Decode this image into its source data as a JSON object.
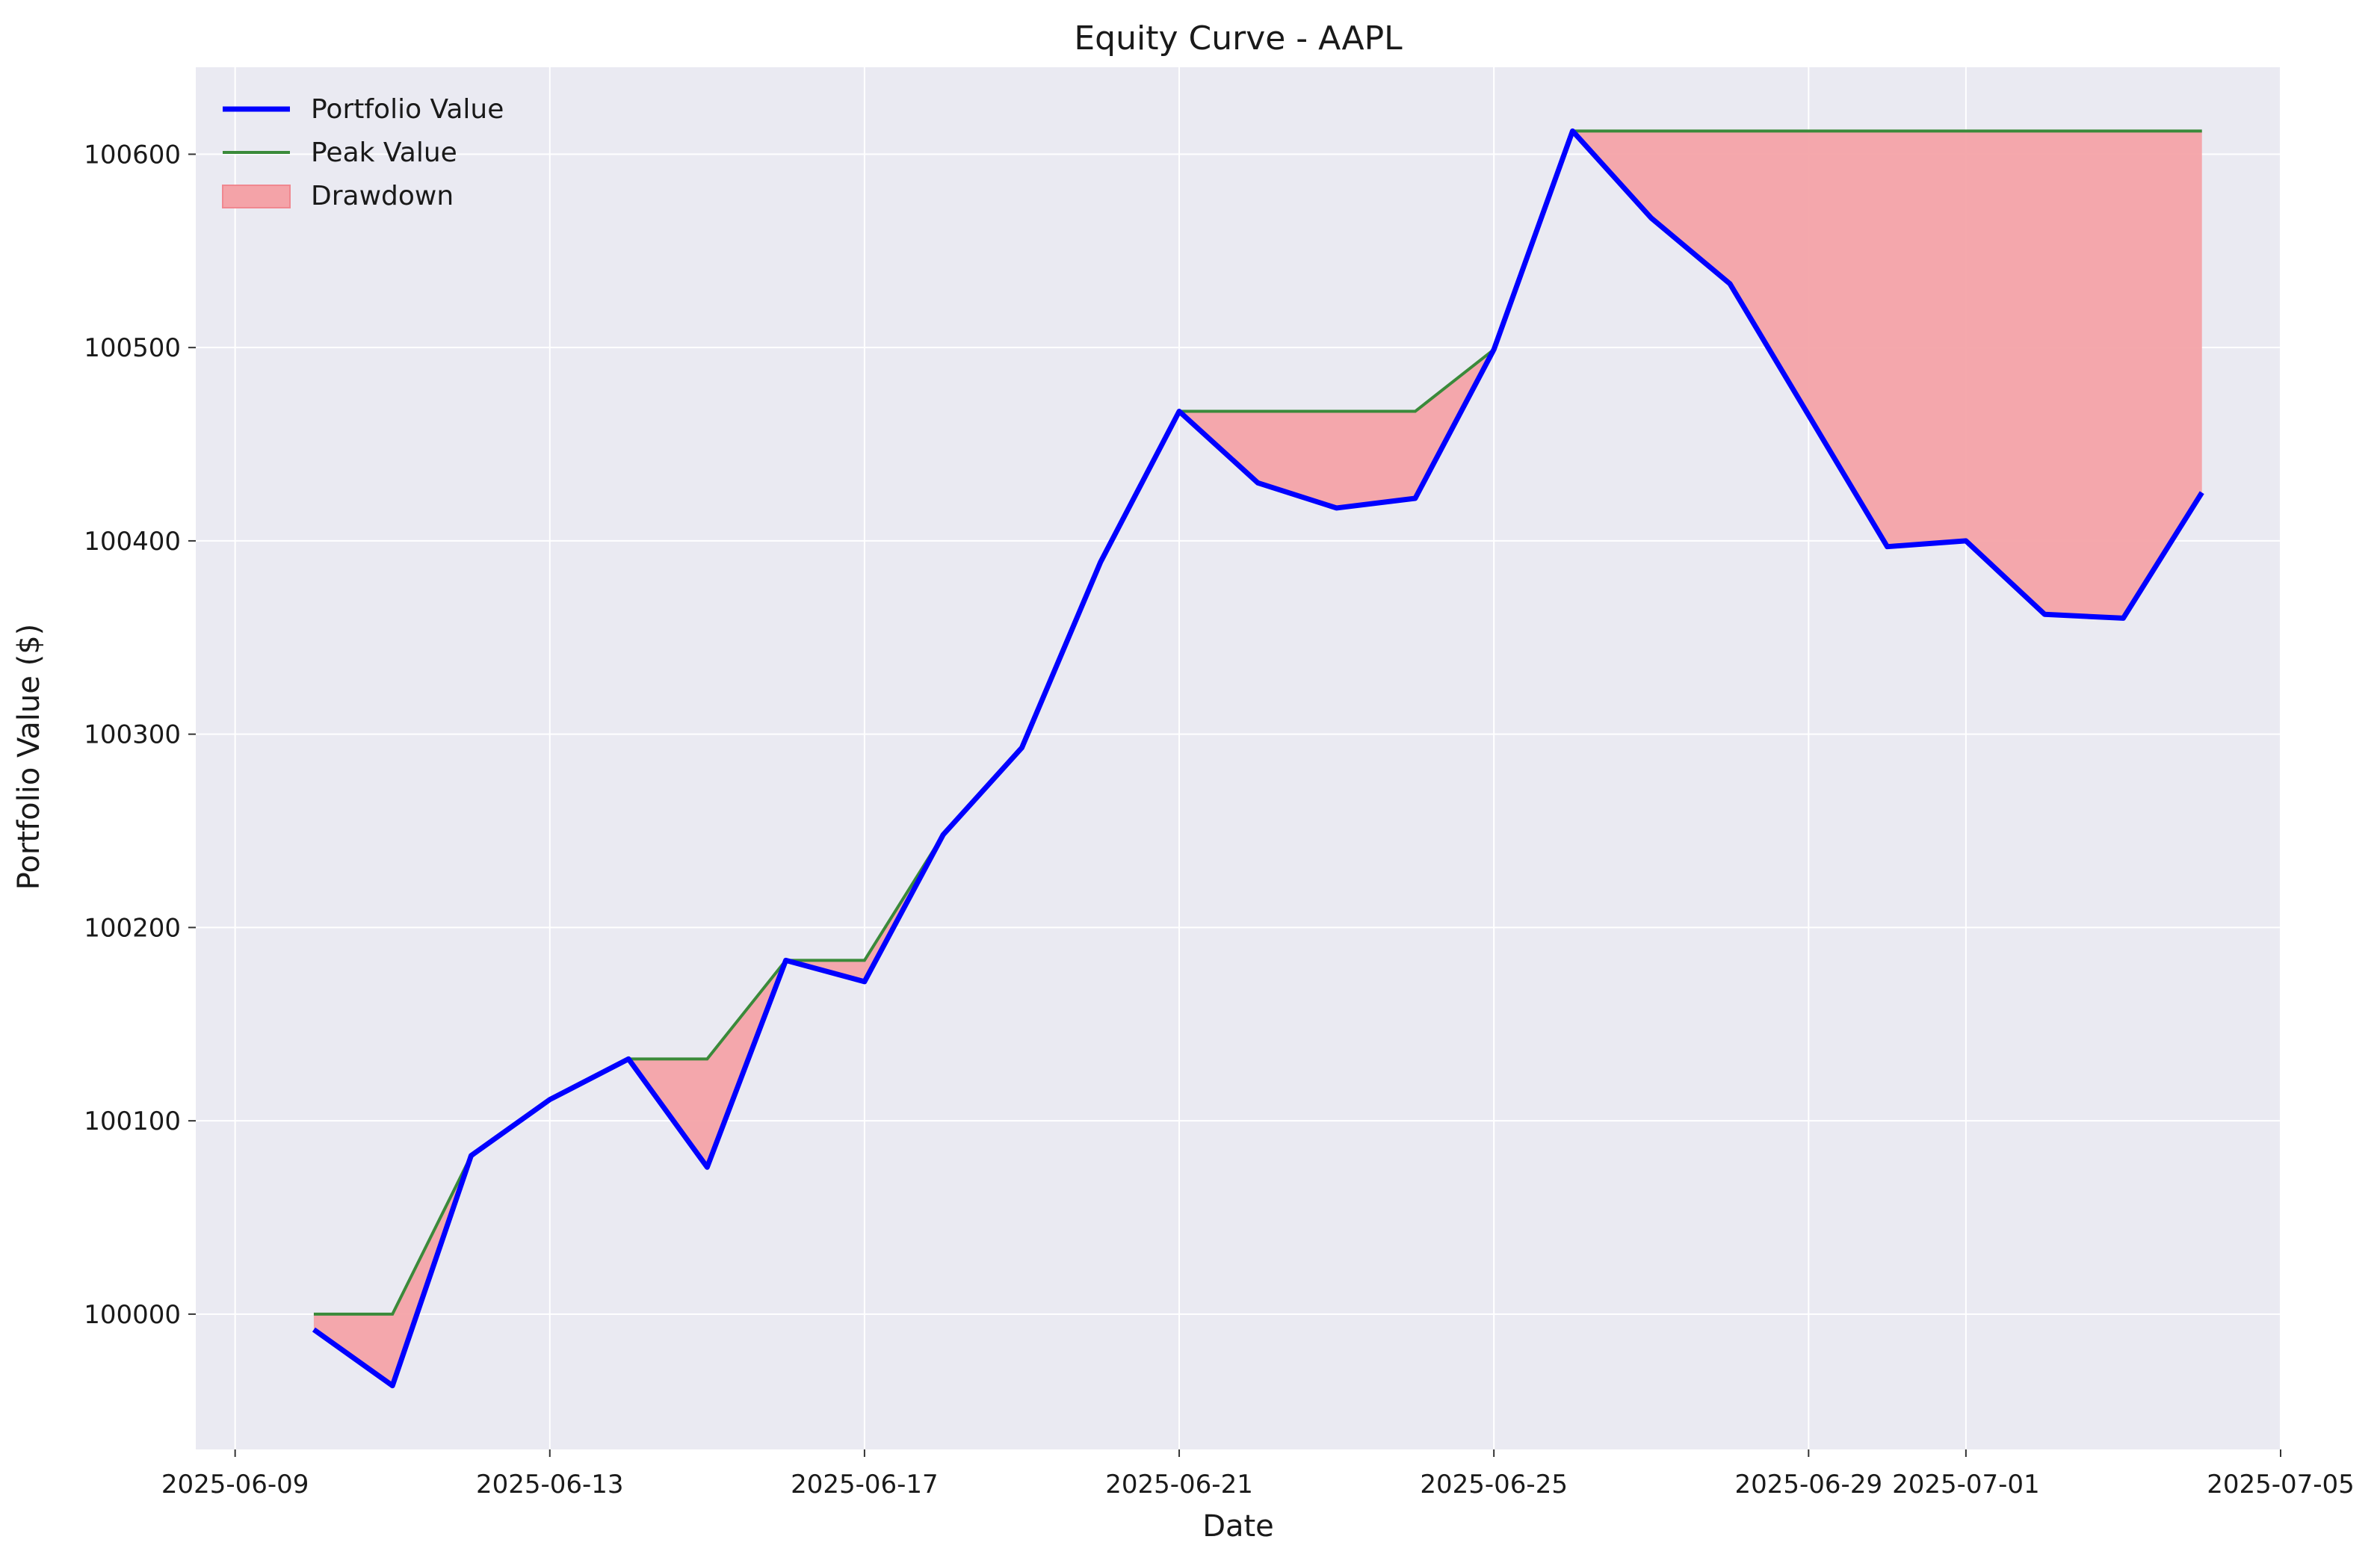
{
  "chart_data": {
    "type": "area",
    "title": "Equity Curve - AAPL",
    "xlabel": "Date",
    "ylabel": "Portfolio Value ($)",
    "x_tick_labels": [
      "2025-06-09",
      "2025-06-13",
      "2025-06-17",
      "2025-06-21",
      "2025-06-25",
      "2025-06-29",
      "2025-07-01",
      "2025-07-05"
    ],
    "x_tick_dates": [
      "2025-06-09",
      "2025-06-13",
      "2025-06-17",
      "2025-06-21",
      "2025-06-25",
      "2025-06-29",
      "2025-07-01",
      "2025-07-05"
    ],
    "y_tick_labels": [
      "100000",
      "100100",
      "100200",
      "100300",
      "100400",
      "100500",
      "100600"
    ],
    "y_ticks": [
      100000,
      100100,
      100200,
      100300,
      100400,
      100500,
      100600
    ],
    "xlim": [
      "2025-06-08T12:00",
      "2025-07-05"
    ],
    "ylim": [
      99930,
      100645
    ],
    "grid": true,
    "legend_position": "top-left",
    "legend": [
      "Portfolio Value",
      "Peak Value",
      "Drawdown"
    ],
    "x": [
      "2025-06-10",
      "2025-06-11",
      "2025-06-12",
      "2025-06-13",
      "2025-06-14",
      "2025-06-15",
      "2025-06-16",
      "2025-06-17",
      "2025-06-18",
      "2025-06-19",
      "2025-06-20",
      "2025-06-21",
      "2025-06-22",
      "2025-06-23",
      "2025-06-24",
      "2025-06-25",
      "2025-06-26",
      "2025-06-27",
      "2025-06-28",
      "2025-06-29",
      "2025-06-30",
      "2025-07-01",
      "2025-07-02",
      "2025-07-03",
      "2025-07-04"
    ],
    "series": [
      {
        "name": "Portfolio Value",
        "color": "#0000ff",
        "values": [
          99992,
          99963,
          100082,
          100111,
          100132,
          100076,
          100183,
          100172,
          100248,
          100293,
          100389,
          100467,
          100430,
          100417,
          100422,
          100499,
          100612,
          100567,
          100533,
          100465,
          100397,
          100400,
          100362,
          100360,
          100425
        ]
      },
      {
        "name": "Peak Value",
        "color": "#3a8a3a",
        "values": [
          100000,
          100000,
          100082,
          100111,
          100132,
          100132,
          100183,
          100183,
          100248,
          100293,
          100389,
          100467,
          100467,
          100467,
          100467,
          100499,
          100612,
          100612,
          100612,
          100612,
          100612,
          100612,
          100612,
          100612,
          100612
        ]
      },
      {
        "name": "Drawdown",
        "color": "#f4a3a8"
      }
    ],
    "colors": {
      "plot_background": "#eaeaf2",
      "grid": "#ffffff"
    }
  }
}
